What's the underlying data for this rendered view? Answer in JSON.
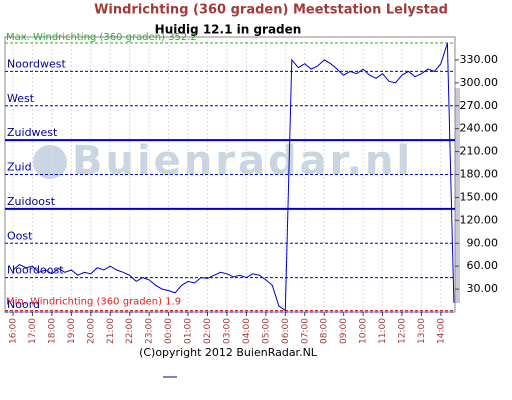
{
  "chart_data": {
    "type": "line",
    "title": "Windrichting (360 graden) Meetstation Lelystad",
    "subtitle": "Huidig 12.1 in graden",
    "copyright": "(C)opyright 2012 BuienRadar.NL",
    "watermark": "Buienradar.nl",
    "categories": [
      "16:00",
      null,
      null,
      "17:00",
      null,
      null,
      "18:00",
      null,
      null,
      "19:00",
      null,
      null,
      "20:00",
      null,
      null,
      "21:00",
      null,
      null,
      "22:00",
      null,
      null,
      "23:00",
      null,
      null,
      "00:00",
      null,
      null,
      "01:00",
      null,
      null,
      "02:00",
      null,
      null,
      "03:00",
      null,
      null,
      "04:00",
      null,
      null,
      "05:00",
      null,
      null,
      "06:00",
      null,
      null,
      "07:00",
      null,
      null,
      "08:00",
      null,
      null,
      "09:00",
      null,
      null,
      "10:00",
      null,
      null,
      "11:00",
      null,
      null,
      "12:00",
      null,
      null,
      "13:00",
      null,
      null,
      "14:00",
      null,
      null
    ],
    "series": [
      {
        "color": "#0000cc",
        "values": [
          55,
          62,
          58,
          60,
          52,
          55,
          50,
          57,
          52,
          55,
          48,
          52,
          50,
          58,
          55,
          60,
          55,
          52,
          48,
          40,
          45,
          42,
          35,
          30,
          28,
          25,
          35,
          40,
          38,
          45,
          44,
          48,
          52,
          50,
          46,
          48,
          45,
          50,
          48,
          42,
          35,
          8,
          1.9,
          330,
          320,
          325,
          318,
          322,
          330,
          325,
          318,
          310,
          315,
          312,
          318,
          310,
          306,
          312,
          302,
          300,
          310,
          315,
          308,
          312,
          318,
          315,
          325,
          352.2,
          12.1
        ]
      }
    ],
    "ylim": [
      0,
      360
    ],
    "yticks": [
      {
        "value": 30,
        "label": "30.00"
      },
      {
        "value": 60,
        "label": "60.00"
      },
      {
        "value": 90,
        "label": "90.00"
      },
      {
        "value": 120,
        "label": "120.00"
      },
      {
        "value": 150,
        "label": "150.00"
      },
      {
        "value": 180,
        "label": "180.00"
      },
      {
        "value": 210,
        "label": "210.00"
      },
      {
        "value": 240,
        "label": "240.00"
      },
      {
        "value": 270,
        "label": "270.00"
      },
      {
        "value": 300,
        "label": "300.00"
      },
      {
        "value": 330,
        "label": "330.00"
      }
    ],
    "reference_lines": [
      {
        "label": "Noordwest",
        "value": 315,
        "thick": false
      },
      {
        "label": "West",
        "value": 270,
        "thick": false
      },
      {
        "label": "Zuidwest",
        "value": 225,
        "thick": true
      },
      {
        "label": "Zuid",
        "value": 180,
        "thick": false
      },
      {
        "label": "Zuidoost",
        "value": 135,
        "thick": true
      },
      {
        "label": "Oost",
        "value": 90,
        "thick": false
      },
      {
        "label": "Noordoost",
        "value": 45,
        "thick": false
      },
      {
        "label": "Noord",
        "value": 0,
        "thick": false
      }
    ],
    "max_line": {
      "label": "Max. Windrichting (360 graden) 352.2",
      "value": 352.2,
      "color": "#33aa33"
    },
    "min_line": {
      "label": "Min. Windrichting (360 graden) 1.9",
      "value": 1.9,
      "color": "#dd2222"
    }
  }
}
